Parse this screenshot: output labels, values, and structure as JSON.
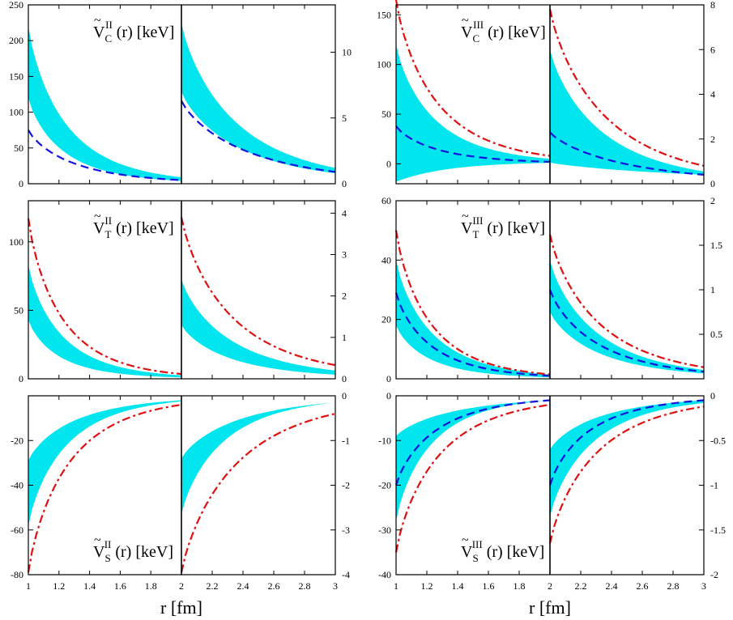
{
  "chart_data": {
    "type": "line",
    "xlabel": "r  [fm]",
    "colors": {
      "band": "#00e5ee",
      "dashed": "#1414e0",
      "dashdot": "#e01010"
    },
    "panels": [
      {
        "id": "VC-II",
        "sym": "V",
        "sub": "C",
        "sup": "II",
        "label_rest": " (r)  [keV]",
        "label_pos": "top",
        "left": {
          "xlim": [
            1,
            2
          ],
          "ylim": [
            0,
            250
          ],
          "yticks": [
            0,
            50,
            100,
            150,
            200,
            250
          ],
          "band_hi": [
            220,
            9
          ],
          "band_lo": [
            120,
            4
          ],
          "dashed": [
            75,
            5
          ],
          "dashdot": null
        },
        "right": {
          "xlim": [
            2,
            3
          ],
          "ylim": [
            0,
            13.6
          ],
          "yticks": [
            0,
            5,
            10
          ],
          "band_hi": [
            12.2,
            1.2
          ],
          "band_lo": [
            7,
            0.8
          ],
          "dashed": [
            6.3,
            0.9
          ],
          "dashdot": null
        }
      },
      {
        "id": "VC-III",
        "sym": "V",
        "sub": "C",
        "sup": "III",
        "label_rest": " (r)  [keV]",
        "label_pos": "top",
        "left": {
          "xlim": [
            1,
            2
          ],
          "ylim": [
            -20,
            160
          ],
          "yticks": [
            0,
            50,
            100,
            150
          ],
          "band_hi": [
            120,
            5
          ],
          "band_lo": [
            -18,
            1
          ],
          "dashed": [
            38,
            2
          ],
          "dashdot": [
            165,
            8
          ]
        },
        "right": {
          "xlim": [
            2,
            3
          ],
          "ylim": [
            0,
            8
          ],
          "yticks": [
            0,
            2,
            4,
            6,
            8
          ],
          "band_hi": [
            6,
            0.55
          ],
          "band_lo": [
            0.95,
            0.4
          ],
          "dashed": [
            2.3,
            0.4
          ],
          "dashdot": [
            7.8,
            0.8
          ]
        }
      },
      {
        "id": "VT-II",
        "sym": "V",
        "sub": "T",
        "sup": "II",
        "label_rest": " (r)  [keV]",
        "label_pos": "top",
        "left": {
          "xlim": [
            1,
            2
          ],
          "ylim": [
            0,
            130
          ],
          "yticks": [
            0,
            50,
            100
          ],
          "band_hi": [
            83,
            2.5
          ],
          "band_lo": [
            43,
            1
          ],
          "dashed": null,
          "dashdot": [
            117,
            3.5
          ]
        },
        "right": {
          "xlim": [
            2,
            3
          ],
          "ylim": [
            0,
            4.3
          ],
          "yticks": [
            0,
            1,
            2,
            3,
            4
          ],
          "band_hi": [
            2.4,
            0.2
          ],
          "band_lo": [
            1.3,
            0.1
          ],
          "dashed": null,
          "dashdot": [
            3.9,
            0.33
          ]
        }
      },
      {
        "id": "VT-III",
        "sym": "V",
        "sub": "T",
        "sup": "III",
        "label_rest": " (r)  [keV]",
        "label_pos": "top",
        "left": {
          "xlim": [
            1,
            2
          ],
          "ylim": [
            0,
            60
          ],
          "yticks": [
            0,
            20,
            40,
            60
          ],
          "band_hi": [
            40,
            1.5
          ],
          "band_lo": [
            18,
            0.5
          ],
          "dashed": [
            29,
            1
          ],
          "dashdot": [
            50,
            1.5
          ]
        },
        "right": {
          "xlim": [
            2,
            3
          ],
          "ylim": [
            0,
            2
          ],
          "yticks": [
            0.5,
            1,
            1.5,
            2
          ],
          "band_hi": [
            1.33,
            0.1
          ],
          "band_lo": [
            0.75,
            0.06
          ],
          "dashed": [
            1,
            0.08
          ],
          "dashdot": [
            1.62,
            0.13
          ]
        }
      },
      {
        "id": "VS-II",
        "sym": "V",
        "sub": "S",
        "sup": "II",
        "label_rest": " (r)  [keV]",
        "label_pos": "bottom",
        "left": {
          "xlim": [
            1,
            2
          ],
          "ylim": [
            -80,
            0
          ],
          "yticks": [
            -80,
            -60,
            -40,
            -20
          ],
          "band_hi": [
            -29,
            -2
          ],
          "band_lo": [
            -58,
            -2.5
          ],
          "dashed": null,
          "dashdot": [
            -79,
            -4
          ]
        },
        "right": {
          "xlim": [
            2,
            3
          ],
          "ylim": [
            -4,
            0
          ],
          "yticks": [
            -4,
            -3,
            -2,
            -1,
            0
          ],
          "band_hi": [
            -1.4,
            -0.15
          ],
          "band_lo": [
            -2.65,
            -0.15
          ],
          "dashed": null,
          "dashdot": [
            -3.95,
            -0.4
          ]
        }
      },
      {
        "id": "VS-III",
        "sym": "V",
        "sub": "S",
        "sup": "III",
        "label_rest": " (r)  [keV]",
        "label_pos": "bottom",
        "left": {
          "xlim": [
            1,
            2
          ],
          "ylim": [
            -40,
            0
          ],
          "yticks": [
            -40,
            -30,
            -20,
            -10,
            0
          ],
          "band_hi": [
            -9,
            -1
          ],
          "band_lo": [
            -28,
            -1
          ],
          "dashed": [
            -20,
            -1
          ],
          "dashdot": [
            -35,
            -2
          ]
        },
        "right": {
          "xlim": [
            2,
            3
          ],
          "ylim": [
            -2,
            0
          ],
          "yticks": [
            -2,
            -1.5,
            -1,
            -0.5,
            0
          ],
          "band_hi": [
            -0.6,
            -0.05
          ],
          "band_lo": [
            -1.35,
            -0.08
          ],
          "dashed": [
            -1.0,
            -0.05
          ],
          "dashdot": [
            -1.65,
            -0.12
          ]
        }
      }
    ],
    "xticks_left": [
      1,
      1.2,
      1.4,
      1.6,
      1.8
    ],
    "xticks_right": [
      2,
      2.2,
      2.4,
      2.6,
      2.8,
      3
    ]
  }
}
